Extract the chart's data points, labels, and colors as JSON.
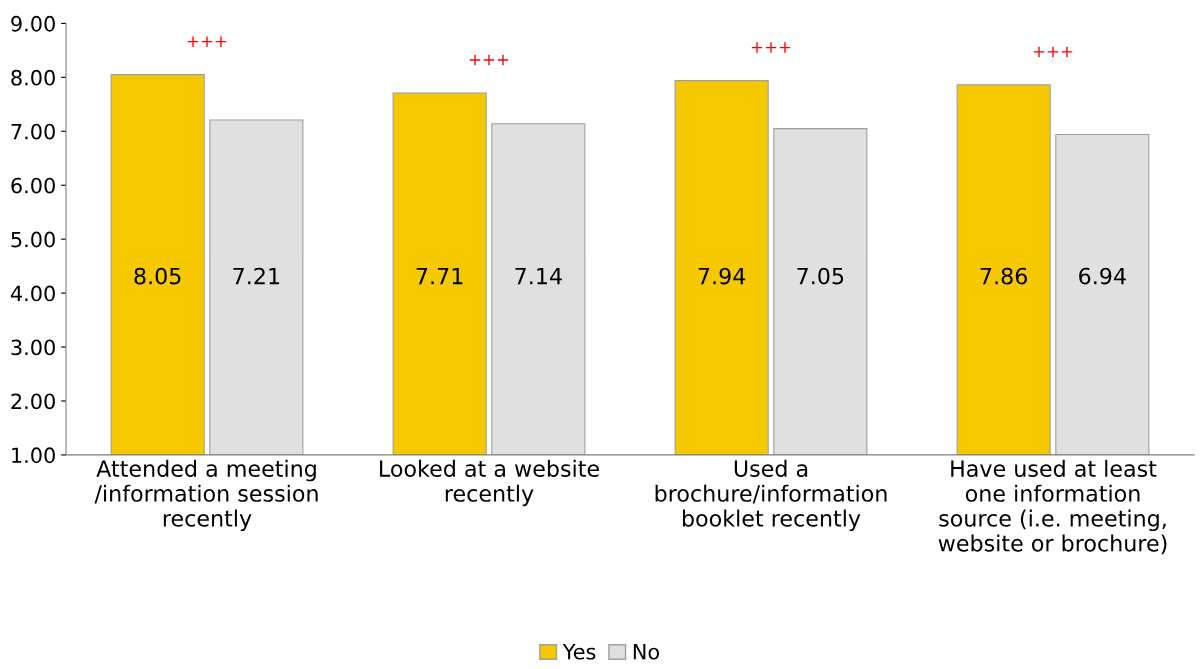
{
  "chart_data": {
    "type": "bar",
    "categories": [
      "Attended a meeting\n/information session\nrecently",
      "Looked at a website\nrecently",
      "Used a\nbrochure/information\nbooklet recently",
      "Have used at least\none information\nsource (i.e. meeting,\nwebsite or brochure)"
    ],
    "series": [
      {
        "name": "Yes",
        "color": "#f5c800",
        "values": [
          8.05,
          7.71,
          7.94,
          7.86
        ]
      },
      {
        "name": "No",
        "color": "#e0e0e0",
        "values": [
          7.21,
          7.14,
          7.05,
          6.94
        ]
      }
    ],
    "ylim": [
      1,
      9
    ],
    "yticks": [
      {
        "value": 1,
        "label": "1.00"
      },
      {
        "value": 2,
        "label": "2.00"
      },
      {
        "value": 3,
        "label": "3.00"
      },
      {
        "value": 4,
        "label": "4.00"
      },
      {
        "value": 5,
        "label": "5.00"
      },
      {
        "value": 6,
        "label": "6.00"
      },
      {
        "value": 7,
        "label": "7.00"
      },
      {
        "value": 8,
        "label": "8.00"
      },
      {
        "value": 9,
        "label": "9.00"
      }
    ],
    "annotations": [
      "+++",
      "+++",
      "+++",
      "+++"
    ],
    "data_labels": true,
    "grid": false,
    "legend": "bottom"
  }
}
